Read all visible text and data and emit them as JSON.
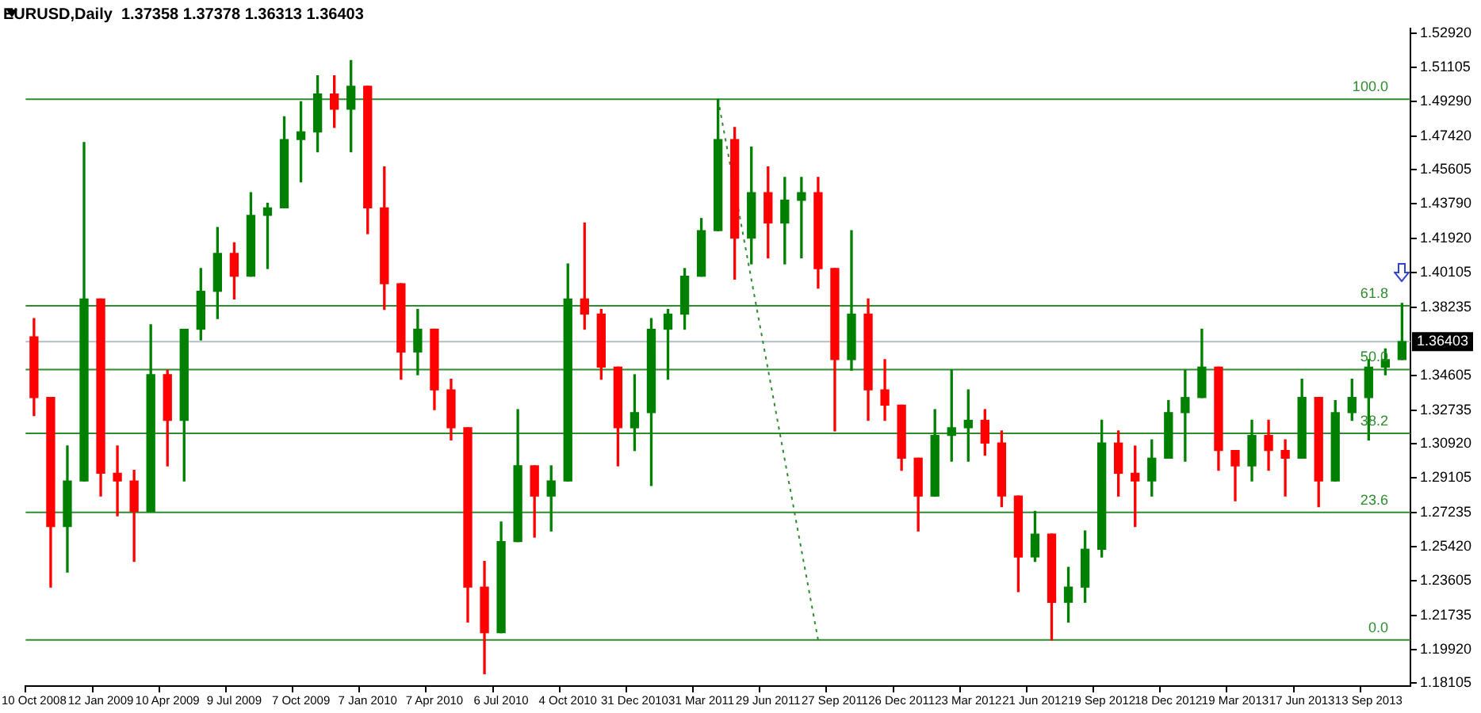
{
  "chart_data": {
    "type": "candlestick",
    "title": "EURUSD,Daily  1.37358 1.37378 1.36313 1.36403",
    "categories": [
      "10 Oct 2008",
      null,
      null,
      null,
      "12 Jan 2009",
      null,
      null,
      null,
      "10 Apr 2009",
      null,
      null,
      null,
      "9 Jul 2009",
      null,
      null,
      null,
      "7 Oct 2009",
      null,
      null,
      null,
      "7 Jan 2010",
      null,
      null,
      null,
      "7 Apr 2010",
      null,
      null,
      null,
      "6 Jul 2010",
      null,
      null,
      null,
      "4 Oct 2010",
      null,
      null,
      null,
      "31 Dec 2010",
      null,
      null,
      null,
      "31 Mar 2011",
      null,
      null,
      null,
      "29 Jun 2011",
      null,
      null,
      null,
      "27 Sep 2011",
      null,
      null,
      null,
      "26 Dec 2011",
      null,
      null,
      null,
      "23 Mar 2012",
      null,
      null,
      null,
      "21 Jun 2012",
      null,
      null,
      null,
      "19 Sep 2012",
      null,
      null,
      null,
      "18 Dec 2012",
      null,
      null,
      null,
      "19 Mar 2013",
      null,
      null,
      null,
      "17 Jun 2013",
      null,
      null,
      null,
      "13 Sep 2013",
      null,
      null
    ],
    "ohlc": [
      [
        1.3666,
        1.3764,
        1.3244,
        1.3341
      ],
      [
        1.3341,
        1.3341,
        1.2325,
        1.265
      ],
      [
        1.265,
        1.3081,
        1.2406,
        1.2894
      ],
      [
        1.2894,
        1.4707,
        1.2894,
        1.3869
      ],
      [
        1.3869,
        1.3869,
        1.2813,
        1.2935
      ],
      [
        1.2935,
        1.3081,
        1.2707,
        1.2894
      ],
      [
        1.2894,
        1.2951,
        1.2463,
        1.2731
      ],
      [
        1.2731,
        1.3731,
        1.2731,
        1.3463
      ],
      [
        1.3463,
        1.3487,
        1.2975,
        1.3219
      ],
      [
        1.3219,
        1.3707,
        1.2894,
        1.3707
      ],
      [
        1.3707,
        1.4032,
        1.365,
        1.391
      ],
      [
        1.391,
        1.4252,
        1.3764,
        1.4113
      ],
      [
        1.4113,
        1.417,
        1.3869,
        1.3991
      ],
      [
        1.3991,
        1.4439,
        1.3991,
        1.4317
      ],
      [
        1.4317,
        1.4382,
        1.4032,
        1.4357
      ],
      [
        1.4357,
        1.4845,
        1.4357,
        1.4723
      ],
      [
        1.4723,
        1.4926,
        1.4496,
        1.4764
      ],
      [
        1.4764,
        1.5065,
        1.4658,
        1.4967
      ],
      [
        1.4967,
        1.5065,
        1.4788,
        1.4886
      ],
      [
        1.4886,
        1.5146,
        1.4658,
        1.5008
      ],
      [
        1.5008,
        1.5008,
        1.4219,
        1.4357
      ],
      [
        1.4357,
        1.4577,
        1.3813,
        1.3951
      ],
      [
        1.3951,
        1.3951,
        1.3439,
        1.3585
      ],
      [
        1.3585,
        1.3813,
        1.3463,
        1.3707
      ],
      [
        1.3707,
        1.3707,
        1.3276,
        1.3382
      ],
      [
        1.3382,
        1.3439,
        1.3114,
        1.3179
      ],
      [
        1.3179,
        1.3179,
        1.2138,
        1.2325
      ],
      [
        1.2325,
        1.2463,
        1.1861,
        1.2081
      ],
      [
        1.2081,
        1.2674,
        1.2081,
        1.2569
      ],
      [
        1.2569,
        1.3276,
        1.2569,
        1.2975
      ],
      [
        1.2975,
        1.2975,
        1.2593,
        1.2813
      ],
      [
        1.2813,
        1.2975,
        1.2626,
        1.2894
      ],
      [
        1.2894,
        1.4057,
        1.2894,
        1.3869
      ],
      [
        1.3869,
        1.4276,
        1.3707,
        1.3788
      ],
      [
        1.3788,
        1.3813,
        1.3439,
        1.3504
      ],
      [
        1.3504,
        1.3504,
        1.2975,
        1.3179
      ],
      [
        1.3179,
        1.3463,
        1.3057,
        1.326
      ],
      [
        1.326,
        1.3764,
        1.287,
        1.3707
      ],
      [
        1.3707,
        1.3813,
        1.3439,
        1.3788
      ],
      [
        1.3788,
        1.4032,
        1.3707,
        1.3991
      ],
      [
        1.3991,
        1.43,
        1.3991,
        1.4235
      ],
      [
        1.4235,
        1.4939,
        1.4235,
        1.4723
      ],
      [
        1.4723,
        1.4788,
        1.3975,
        1.4195
      ],
      [
        1.4195,
        1.4683,
        1.4057,
        1.4439
      ],
      [
        1.4439,
        1.4577,
        1.4089,
        1.4276
      ],
      [
        1.4276,
        1.452,
        1.4057,
        1.4398
      ],
      [
        1.4398,
        1.452,
        1.4089,
        1.4439
      ],
      [
        1.4439,
        1.452,
        1.3927,
        1.4032
      ],
      [
        1.4032,
        1.4032,
        1.3162,
        1.3544
      ],
      [
        1.3544,
        1.4235,
        1.3487,
        1.3788
      ],
      [
        1.3788,
        1.3869,
        1.3219,
        1.3382
      ],
      [
        1.3382,
        1.3544,
        1.3219,
        1.33
      ],
      [
        1.33,
        1.33,
        1.2951,
        1.3016
      ],
      [
        1.3016,
        1.3016,
        1.2626,
        1.2813
      ],
      [
        1.2813,
        1.3276,
        1.2813,
        1.3138
      ],
      [
        1.3138,
        1.3487,
        1.3,
        1.3179
      ],
      [
        1.3179,
        1.3382,
        1.3,
        1.3219
      ],
      [
        1.3219,
        1.3276,
        1.3032,
        1.3097
      ],
      [
        1.3097,
        1.3162,
        1.2756,
        1.2813
      ],
      [
        1.2813,
        1.2813,
        1.2301,
        1.2487
      ],
      [
        1.2487,
        1.2731,
        1.2463,
        1.2609
      ],
      [
        1.2609,
        1.2609,
        1.2042,
        1.2244
      ],
      [
        1.2244,
        1.2431,
        1.2138,
        1.2325
      ],
      [
        1.2325,
        1.2626,
        1.2244,
        1.2528
      ],
      [
        1.2528,
        1.3219,
        1.2487,
        1.3097
      ],
      [
        1.3097,
        1.3162,
        1.2813,
        1.2935
      ],
      [
        1.2935,
        1.3081,
        1.265,
        1.2894
      ],
      [
        1.2894,
        1.3114,
        1.2813,
        1.3016
      ],
      [
        1.3016,
        1.3325,
        1.3016,
        1.326
      ],
      [
        1.326,
        1.3487,
        1.3,
        1.3341
      ],
      [
        1.3341,
        1.3707,
        1.3341,
        1.3504
      ],
      [
        1.3504,
        1.3504,
        1.2951,
        1.3057
      ],
      [
        1.3057,
        1.3057,
        1.2788,
        1.2975
      ],
      [
        1.2975,
        1.3219,
        1.2894,
        1.3138
      ],
      [
        1.3138,
        1.3219,
        1.2951,
        1.3057
      ],
      [
        1.3057,
        1.3114,
        1.2813,
        1.3016
      ],
      [
        1.3016,
        1.3439,
        1.3016,
        1.3341
      ],
      [
        1.3341,
        1.3341,
        1.2756,
        1.2894
      ],
      [
        1.2894,
        1.3325,
        1.2894,
        1.326
      ],
      [
        1.326,
        1.3439,
        1.3219,
        1.3341
      ],
      [
        1.3341,
        1.3544,
        1.3114,
        1.3504
      ],
      [
        1.3504,
        1.3601,
        1.3463,
        1.3544
      ],
      [
        1.3544,
        1.3845,
        1.3544,
        1.36403
      ]
    ],
    "colors": [
      "#ff0000",
      "#ff0000",
      "#008000",
      "#008000",
      "#ff0000",
      "#ff0000",
      "#ff0000",
      "#008000",
      "#ff0000",
      "#008000",
      "#008000",
      "#008000",
      "#ff0000",
      "#008000",
      "#008000",
      "#008000",
      "#008000",
      "#008000",
      "#ff0000",
      "#008000",
      "#ff0000",
      "#ff0000",
      "#ff0000",
      "#008000",
      "#ff0000",
      "#ff0000",
      "#ff0000",
      "#ff0000",
      "#008000",
      "#008000",
      "#ff0000",
      "#008000",
      "#008000",
      "#ff0000",
      "#ff0000",
      "#ff0000",
      "#008000",
      "#008000",
      "#008000",
      "#008000",
      "#008000",
      "#008000",
      "#ff0000",
      "#008000",
      "#ff0000",
      "#008000",
      "#008000",
      "#ff0000",
      "#ff0000",
      "#008000",
      "#ff0000",
      "#ff0000",
      "#ff0000",
      "#ff0000",
      "#008000",
      "#008000",
      "#008000",
      "#ff0000",
      "#ff0000",
      "#ff0000",
      "#008000",
      "#ff0000",
      "#008000",
      "#008000",
      "#008000",
      "#ff0000",
      "#ff0000",
      "#008000",
      "#008000",
      "#008000",
      "#008000",
      "#ff0000",
      "#ff0000",
      "#008000",
      "#ff0000",
      "#ff0000",
      "#008000",
      "#ff0000",
      "#008000",
      "#008000",
      "#008000",
      "#008000",
      "#008000"
    ],
    "series": [
      {
        "type": "line",
        "color": "#2e8b2e",
        "line_style": "dotted",
        "values": [
          null,
          null,
          null,
          null,
          null,
          null,
          null,
          null,
          null,
          null,
          null,
          null,
          null,
          null,
          null,
          null,
          null,
          null,
          null,
          null,
          null,
          null,
          null,
          null,
          null,
          null,
          null,
          null,
          null,
          null,
          null,
          null,
          null,
          null,
          null,
          null,
          null,
          null,
          null,
          null,
          null,
          1.4939,
          null,
          null,
          null,
          null,
          null,
          1.2042,
          null,
          null,
          null,
          null,
          null,
          null,
          null,
          null,
          null,
          null,
          null,
          null,
          null,
          null,
          null,
          null,
          null,
          null,
          null,
          null,
          null,
          null,
          null,
          null,
          null,
          null,
          null,
          null,
          null,
          null,
          null,
          null,
          null,
          null,
          null
        ]
      }
    ],
    "ylim": [
      1.1795,
      1.5318
    ],
    "yticks": [
      {
        "value": 1.5292,
        "label": "1.52920"
      },
      {
        "value": 1.51105,
        "label": "1.51105"
      },
      {
        "value": 1.4929,
        "label": "1.49290"
      },
      {
        "value": 1.4742,
        "label": "1.47420"
      },
      {
        "value": 1.45605,
        "label": "1.45605"
      },
      {
        "value": 1.4379,
        "label": "1.43790"
      },
      {
        "value": 1.4192,
        "label": "1.41920"
      },
      {
        "value": 1.40105,
        "label": "1.40105"
      },
      {
        "value": 1.38235,
        "label": "1.38235"
      },
      {
        "value": 1.34605,
        "label": "1.34605"
      },
      {
        "value": 1.32735,
        "label": "1.32735"
      },
      {
        "value": 1.3092,
        "label": "1.30920"
      },
      {
        "value": 1.29105,
        "label": "1.29105"
      },
      {
        "value": 1.27235,
        "label": "1.27235"
      },
      {
        "value": 1.2542,
        "label": "1.25420"
      },
      {
        "value": 1.23605,
        "label": "1.23605"
      },
      {
        "value": 1.21735,
        "label": "1.21735"
      },
      {
        "value": 1.1992,
        "label": "1.19920"
      },
      {
        "value": 1.18105,
        "label": "1.18105"
      }
    ],
    "ref_lines": [
      {
        "axis": "y",
        "value": 1.36403,
        "label": "1.36403",
        "color": "#b0bec5"
      },
      {
        "axis": "y",
        "value": 1.4939,
        "color": "#2e8b2e"
      },
      {
        "axis": "y",
        "value": 1.3832,
        "color": "#2e8b2e"
      },
      {
        "axis": "y",
        "value": 1.3491,
        "color": "#2e8b2e"
      },
      {
        "axis": "y",
        "value": 1.3149,
        "color": "#2e8b2e"
      },
      {
        "axis": "y",
        "value": 1.2726,
        "color": "#2e8b2e"
      },
      {
        "axis": "y",
        "value": 1.2042,
        "color": "#2e8b2e"
      }
    ],
    "annotations": [
      {
        "text": "100.0",
        "y": 1.4939
      },
      {
        "text": "61.8",
        "y": 1.3832
      },
      {
        "text": "50.0",
        "y": 1.3491
      },
      {
        "text": "38.2",
        "y": 1.3149
      },
      {
        "text": "23.6",
        "y": 1.2726
      },
      {
        "text": "0.0",
        "y": 1.2042
      }
    ]
  }
}
